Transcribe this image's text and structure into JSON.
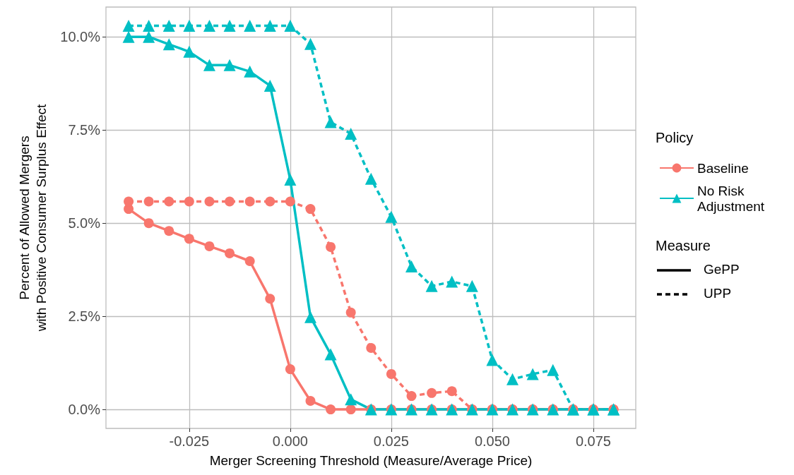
{
  "chart_data": {
    "type": "line",
    "xlabel": "Merger Screening Threshold (Measure/Average Price)",
    "ylabel": "Percent of Allowed Mergers\nwith Positive Consumer Surplus Effect",
    "legend_title": [
      "Policy",
      "Measure"
    ],
    "annotations": [
      "GePP",
      "UPP"
    ],
    "x": [
      -0.04,
      -0.035,
      -0.03,
      -0.025,
      -0.02,
      -0.015,
      -0.01,
      -0.005,
      0,
      0.005,
      0.01,
      0.015,
      0.02,
      0.025,
      0.03,
      0.035,
      0.04,
      0.045,
      0.05,
      0.055,
      0.06,
      0.065,
      0.07,
      0.075,
      0.08
    ],
    "series": [
      {
        "name": "Baseline",
        "color": "#f8766d",
        "marker": "circle",
        "line_style": "solid",
        "values": [
          5.38,
          5.0,
          4.79,
          4.58,
          4.38,
          4.19,
          3.98,
          2.97,
          1.08,
          0.23,
          0,
          0,
          0,
          0,
          0,
          0,
          0,
          0,
          0,
          0,
          0,
          0,
          0,
          0,
          0
        ]
      },
      {
        "color": "#f8766d",
        "marker": "circle",
        "line_style": "dashed",
        "values": [
          5.58,
          5.58,
          5.58,
          5.58,
          5.58,
          5.58,
          5.58,
          5.58,
          5.58,
          5.38,
          4.36,
          2.6,
          1.65,
          0.95,
          0.36,
          0.44,
          0.49,
          0,
          0,
          0,
          0,
          0,
          0,
          0,
          0
        ]
      },
      {
        "name": "No Risk Adjustment",
        "color": "#00bfc4",
        "marker": "triangle",
        "line_style": "solid",
        "values": [
          10.0,
          10.0,
          9.8,
          9.6,
          9.24,
          9.24,
          9.07,
          8.69,
          6.17,
          2.48,
          1.48,
          0.27,
          0,
          0,
          0,
          0,
          0,
          0,
          0,
          0,
          0,
          0,
          0,
          0,
          0
        ]
      },
      {
        "color": "#00bfc4",
        "marker": "triangle",
        "line_style": "dashed",
        "values": [
          10.3,
          10.3,
          10.3,
          10.3,
          10.3,
          10.3,
          10.3,
          10.3,
          10.3,
          9.81,
          7.71,
          7.4,
          6.19,
          5.17,
          3.84,
          3.31,
          3.43,
          3.31,
          1.33,
          0.81,
          0.95,
          1.06,
          0,
          0,
          0
        ]
      }
    ],
    "xlim": [
      -0.0456,
      0.0855
    ],
    "xticks": [
      {
        "value": -0.025,
        "label": "-0.025"
      },
      {
        "value": 0,
        "label": "0.000"
      },
      {
        "value": 0.025,
        "label": "0.025"
      },
      {
        "value": 0.05,
        "label": "0.050"
      },
      {
        "value": 0.075,
        "label": "0.075"
      }
    ],
    "ylim": [
      -0.51,
      10.8
    ],
    "yticks": [
      {
        "value": 0,
        "label": "0.0%"
      },
      {
        "value": 2.5,
        "label": "2.5%"
      },
      {
        "value": 5,
        "label": "5.0%"
      },
      {
        "value": 7.5,
        "label": "7.5%"
      },
      {
        "value": 10,
        "label": "10.0%"
      }
    ],
    "grid": true,
    "legend": "right"
  }
}
